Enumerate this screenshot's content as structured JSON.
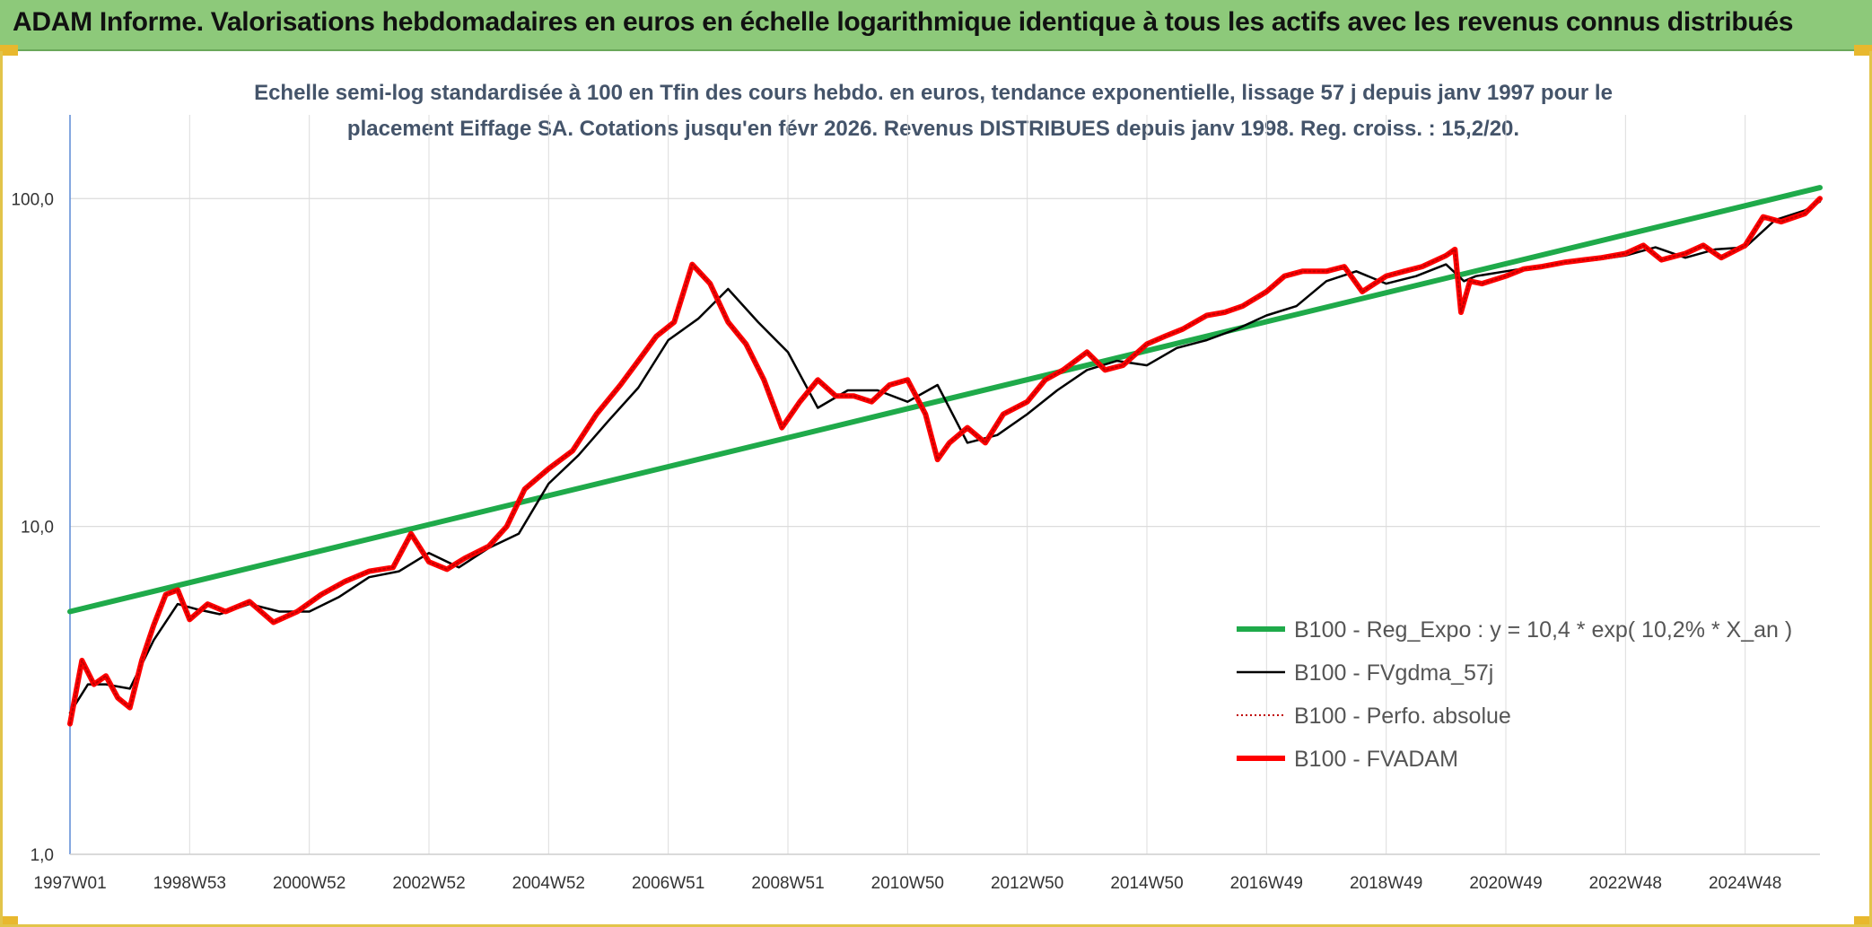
{
  "header": {
    "title": "ADAM Informe. Valorisations hebdomadaires en euros en échelle logarithmique identique à tous les actifs avec les revenus connus distribués"
  },
  "chart_data": {
    "type": "line",
    "title": "",
    "subtitle_lines": [
      "Echelle semi-log standardisée à 100 en Tfin des cours hebdo. en euros, tendance exponentielle, lissage 57 j depuis janv 1997 pour le",
      "placement Eiffage SA. Cotations jusqu'en févr 2026. Revenus DISTRIBUES depuis janv 1998. Reg. croiss. : 15,2/20."
    ],
    "xlabel": "",
    "ylabel": "",
    "y_scale": "log",
    "ylim": [
      1,
      180
    ],
    "y_ticks": [
      {
        "label": "1,0",
        "value": 1
      },
      {
        "label": "10,0",
        "value": 10
      },
      {
        "label": "100,0",
        "value": 100
      }
    ],
    "xlim": [
      1997.0,
      2026.25
    ],
    "x_ticks": [
      {
        "label": "1997W01",
        "value": 1997.0
      },
      {
        "label": "1998W53",
        "value": 1999.0
      },
      {
        "label": "2000W52",
        "value": 2001.0
      },
      {
        "label": "2002W52",
        "value": 2003.0
      },
      {
        "label": "2004W52",
        "value": 2005.0
      },
      {
        "label": "2006W51",
        "value": 2007.0
      },
      {
        "label": "2008W51",
        "value": 2009.0
      },
      {
        "label": "2010W50",
        "value": 2011.0
      },
      {
        "label": "2012W50",
        "value": 2013.0
      },
      {
        "label": "2014W50",
        "value": 2015.0
      },
      {
        "label": "2016W49",
        "value": 2017.0
      },
      {
        "label": "2018W49",
        "value": 2019.0
      },
      {
        "label": "2020W49",
        "value": 2021.0
      },
      {
        "label": "2022W48",
        "value": 2023.0
      },
      {
        "label": "2024W48",
        "value": 2025.0
      }
    ],
    "grid": true,
    "legend_position": "bottom-right",
    "series": [
      {
        "name": "B100 - Reg_Expo : y = 10,4 * exp( 10,2% *  X_an )",
        "color": "#1faa4a",
        "style": "solid",
        "width": 6,
        "x": [
          1997.0,
          2026.25
        ],
        "y": [
          5.5,
          108
        ]
      },
      {
        "name": "B100 - FVgdma_57j",
        "color": "#000000",
        "style": "solid",
        "width": 2.5,
        "x": [
          1997.0,
          1997.3,
          1997.6,
          1998.0,
          1998.4,
          1998.8,
          1999.1,
          1999.5,
          2000.0,
          2000.5,
          2001.0,
          2001.5,
          2002.0,
          2002.5,
          2003.0,
          2003.5,
          2004.0,
          2004.5,
          2005.0,
          2005.5,
          2006.0,
          2006.5,
          2007.0,
          2007.5,
          2008.0,
          2008.5,
          2009.0,
          2009.5,
          2010.0,
          2010.5,
          2011.0,
          2011.5,
          2012.0,
          2012.5,
          2013.0,
          2013.5,
          2014.0,
          2014.5,
          2015.0,
          2015.5,
          2016.0,
          2016.5,
          2017.0,
          2017.5,
          2018.0,
          2018.5,
          2019.0,
          2019.5,
          2020.0,
          2020.3,
          2020.5,
          2021.0,
          2021.5,
          2022.0,
          2022.5,
          2023.0,
          2023.5,
          2024.0,
          2024.5,
          2025.0,
          2025.5,
          2026.0,
          2026.25
        ],
        "y": [
          2.7,
          3.3,
          3.3,
          3.2,
          4.5,
          5.8,
          5.6,
          5.4,
          5.8,
          5.5,
          5.5,
          6.1,
          7.0,
          7.3,
          8.3,
          7.5,
          8.6,
          9.5,
          13.5,
          16.5,
          21.0,
          26.5,
          37.0,
          43.0,
          53.0,
          42.0,
          34.0,
          23.0,
          26.0,
          26.0,
          24.0,
          27.0,
          18.0,
          19.0,
          22.0,
          26.0,
          30.0,
          32.0,
          31.0,
          35.0,
          37.0,
          40.0,
          44.0,
          47.0,
          56.0,
          60.0,
          55.0,
          58.0,
          63.0,
          56.0,
          58.0,
          60.0,
          62.0,
          64.0,
          65.0,
          67.0,
          71.0,
          66.0,
          70.0,
          71.0,
          86.0,
          92.0,
          98.0
        ]
      },
      {
        "name": "B100 - Perfo. absolue",
        "color": "#c00000",
        "style": "dotted",
        "width": 2,
        "x": [
          1997.0,
          1997.2,
          1997.4,
          1997.6,
          1997.8,
          1998.0,
          1998.2,
          1998.4,
          1998.6,
          1998.8,
          1999.0,
          1999.3,
          1999.6,
          2000.0,
          2000.4,
          2000.8,
          2001.2,
          2001.6,
          2002.0,
          2002.4,
          2002.7,
          2003.0,
          2003.3,
          2003.6,
          2004.0,
          2004.3,
          2004.6,
          2005.0,
          2005.4,
          2005.8,
          2006.2,
          2006.5,
          2006.8,
          2007.1,
          2007.4,
          2007.7,
          2008.0,
          2008.3,
          2008.6,
          2008.9,
          2009.2,
          2009.5,
          2009.8,
          2010.1,
          2010.4,
          2010.7,
          2011.0,
          2011.3,
          2011.5,
          2011.7,
          2012.0,
          2012.3,
          2012.6,
          2013.0,
          2013.3,
          2013.6,
          2014.0,
          2014.3,
          2014.6,
          2015.0,
          2015.3,
          2015.6,
          2016.0,
          2016.3,
          2016.6,
          2017.0,
          2017.3,
          2017.6,
          2018.0,
          2018.3,
          2018.6,
          2019.0,
          2019.3,
          2019.6,
          2020.0,
          2020.15,
          2020.25,
          2020.4,
          2020.6,
          2021.0,
          2021.3,
          2021.6,
          2022.0,
          2022.3,
          2022.6,
          2023.0,
          2023.3,
          2023.6,
          2024.0,
          2024.3,
          2024.6,
          2025.0,
          2025.3,
          2025.6,
          2026.0,
          2026.25
        ],
        "y": [
          2.5,
          3.9,
          3.3,
          3.5,
          3.0,
          2.8,
          3.9,
          5.0,
          6.2,
          6.4,
          5.2,
          5.8,
          5.5,
          5.9,
          5.1,
          5.5,
          6.2,
          6.8,
          7.3,
          7.5,
          9.5,
          7.8,
          7.4,
          8.0,
          8.7,
          10.0,
          13.0,
          15.0,
          17.0,
          22.0,
          27.0,
          32.0,
          38.0,
          42.0,
          63.0,
          55.0,
          42.0,
          36.0,
          28.0,
          20.0,
          24.0,
          28.0,
          25.0,
          25.0,
          24.0,
          27.0,
          28.0,
          22.0,
          16.0,
          18.0,
          20.0,
          18.0,
          22.0,
          24.0,
          28.0,
          30.0,
          34.0,
          30.0,
          31.0,
          36.0,
          38.0,
          40.0,
          44.0,
          45.0,
          47.0,
          52.0,
          58.0,
          60.0,
          60.0,
          62.0,
          52.0,
          58.0,
          60.0,
          62.0,
          67.0,
          70.0,
          45.0,
          56.0,
          55.0,
          58.0,
          61.0,
          62.0,
          64.0,
          65.0,
          66.0,
          68.0,
          72.0,
          65.0,
          68.0,
          72.0,
          66.0,
          72.0,
          88.0,
          85.0,
          90.0,
          100.0
        ]
      },
      {
        "name": "B100 - FVADAM",
        "color": "#ff0000",
        "style": "solid",
        "width": 6,
        "x": [
          1997.0,
          1997.2,
          1997.4,
          1997.6,
          1997.8,
          1998.0,
          1998.2,
          1998.4,
          1998.6,
          1998.8,
          1999.0,
          1999.3,
          1999.6,
          2000.0,
          2000.4,
          2000.8,
          2001.2,
          2001.6,
          2002.0,
          2002.4,
          2002.7,
          2003.0,
          2003.3,
          2003.6,
          2004.0,
          2004.3,
          2004.6,
          2005.0,
          2005.4,
          2005.8,
          2006.2,
          2006.5,
          2006.8,
          2007.1,
          2007.4,
          2007.7,
          2008.0,
          2008.3,
          2008.6,
          2008.9,
          2009.2,
          2009.5,
          2009.8,
          2010.1,
          2010.4,
          2010.7,
          2011.0,
          2011.3,
          2011.5,
          2011.7,
          2012.0,
          2012.3,
          2012.6,
          2013.0,
          2013.3,
          2013.6,
          2014.0,
          2014.3,
          2014.6,
          2015.0,
          2015.3,
          2015.6,
          2016.0,
          2016.3,
          2016.6,
          2017.0,
          2017.3,
          2017.6,
          2018.0,
          2018.3,
          2018.6,
          2019.0,
          2019.3,
          2019.6,
          2020.0,
          2020.15,
          2020.25,
          2020.4,
          2020.6,
          2021.0,
          2021.3,
          2021.6,
          2022.0,
          2022.3,
          2022.6,
          2023.0,
          2023.3,
          2023.6,
          2024.0,
          2024.3,
          2024.6,
          2025.0,
          2025.3,
          2025.6,
          2026.0,
          2026.25
        ],
        "y": [
          2.5,
          3.9,
          3.3,
          3.5,
          3.0,
          2.8,
          3.9,
          5.0,
          6.2,
          6.4,
          5.2,
          5.8,
          5.5,
          5.9,
          5.1,
          5.5,
          6.2,
          6.8,
          7.3,
          7.5,
          9.5,
          7.8,
          7.4,
          8.0,
          8.7,
          10.0,
          13.0,
          15.0,
          17.0,
          22.0,
          27.0,
          32.0,
          38.0,
          42.0,
          63.0,
          55.0,
          42.0,
          36.0,
          28.0,
          20.0,
          24.0,
          28.0,
          25.0,
          25.0,
          24.0,
          27.0,
          28.0,
          22.0,
          16.0,
          18.0,
          20.0,
          18.0,
          22.0,
          24.0,
          28.0,
          30.0,
          34.0,
          30.0,
          31.0,
          36.0,
          38.0,
          40.0,
          44.0,
          45.0,
          47.0,
          52.0,
          58.0,
          60.0,
          60.0,
          62.0,
          52.0,
          58.0,
          60.0,
          62.0,
          67.0,
          70.0,
          45.0,
          56.0,
          55.0,
          58.0,
          61.0,
          62.0,
          64.0,
          65.0,
          66.0,
          68.0,
          72.0,
          65.0,
          68.0,
          72.0,
          66.0,
          72.0,
          88.0,
          85.0,
          90.0,
          100.0
        ]
      }
    ]
  }
}
